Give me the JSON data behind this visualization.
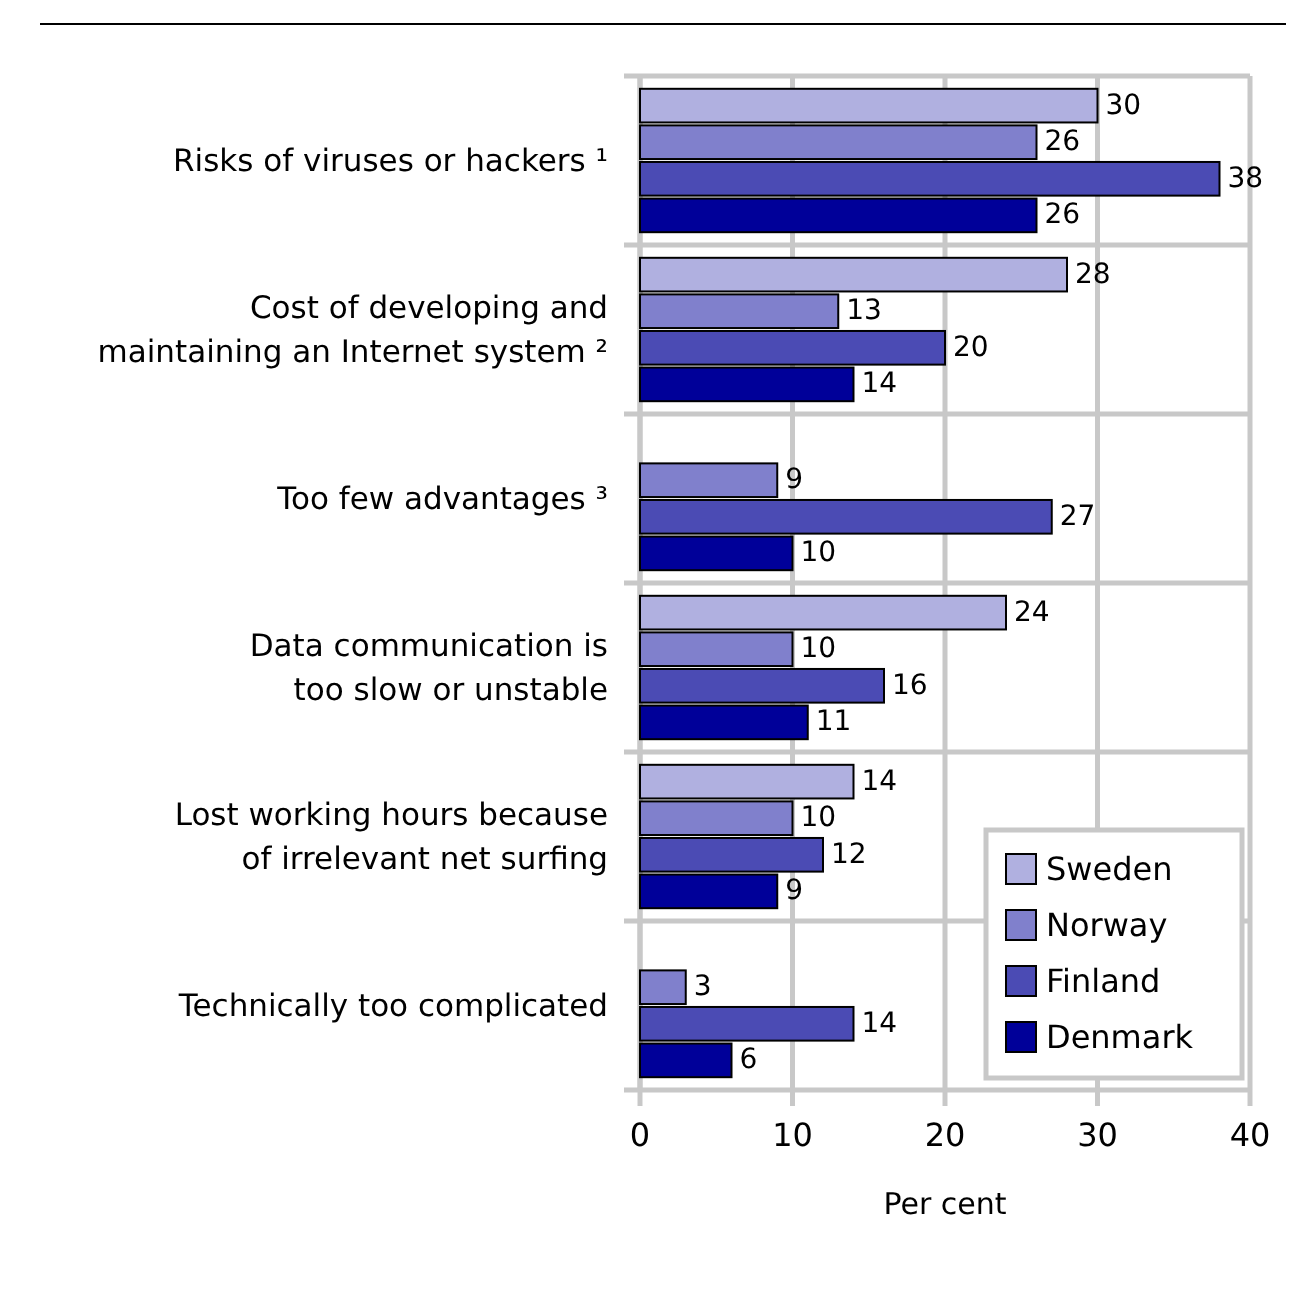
{
  "chart_data": {
    "type": "bar",
    "orientation": "horizontal",
    "xlabel": "Per cent",
    "categories": [
      "Risks of viruses or hackers ¹",
      "Cost of developing and\nmaintaining an Internet system ²",
      "Too few advantages ³",
      "Data communication is\ntoo slow or unstable",
      "Lost working hours because\nof irrelevant net surfing",
      "Technically too complicated"
    ],
    "series": [
      {
        "name": "Sweden",
        "color": "#b0b0e0",
        "values": [
          30,
          28,
          null,
          24,
          14,
          null
        ]
      },
      {
        "name": "Norway",
        "color": "#8080cc",
        "values": [
          26,
          13,
          9,
          10,
          10,
          3
        ]
      },
      {
        "name": "Finland",
        "color": "#4b4bb4",
        "values": [
          38,
          20,
          27,
          16,
          12,
          14
        ]
      },
      {
        "name": "Denmark",
        "color": "#000099",
        "values": [
          26,
          14,
          10,
          11,
          9,
          6
        ]
      }
    ],
    "xlim": [
      0,
      40
    ],
    "xticks": [
      0,
      10,
      20,
      30,
      40
    ],
    "grid": true,
    "legend": "bottom right",
    "data_labels": true
  }
}
